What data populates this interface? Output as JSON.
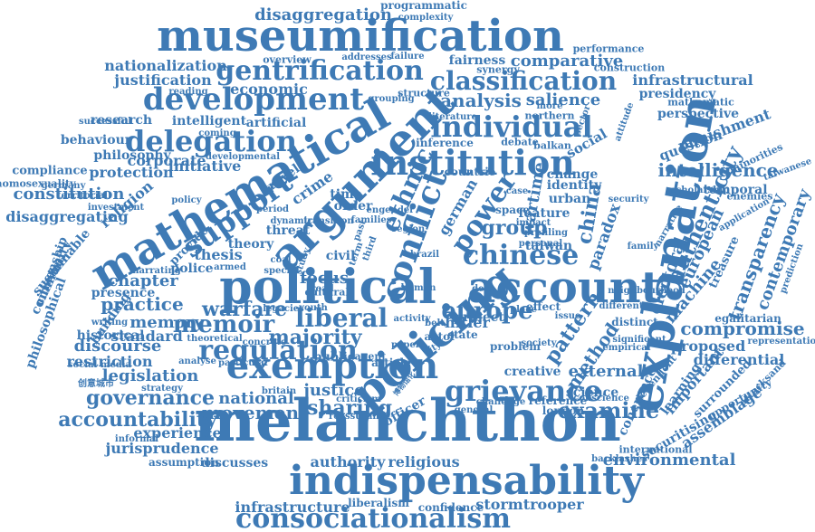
{
  "colors": {
    "word": "#3e7ab5",
    "background": "#ffffff"
  },
  "words": [
    {
      "text": "museumification"
    },
    {
      "text": "melanchthon"
    },
    {
      "text": "indispensability"
    },
    {
      "text": "political"
    },
    {
      "text": "account"
    },
    {
      "text": "mathematical"
    },
    {
      "text": "argument"
    },
    {
      "text": "explanation"
    },
    {
      "text": "policing"
    },
    {
      "text": "exemption"
    },
    {
      "text": "consociationalism"
    },
    {
      "text": "institution"
    },
    {
      "text": "conflict"
    },
    {
      "text": "development"
    },
    {
      "text": "gentrification"
    },
    {
      "text": "classification"
    },
    {
      "text": "grievance"
    },
    {
      "text": "regulation"
    },
    {
      "text": "delegation"
    },
    {
      "text": "individual"
    },
    {
      "text": "chinese"
    },
    {
      "text": "support"
    },
    {
      "text": "ethnic"
    },
    {
      "text": "power"
    },
    {
      "text": "liberal"
    },
    {
      "text": "memoir"
    },
    {
      "text": "authenticity"
    },
    {
      "text": "pattern"
    },
    {
      "text": "accountability"
    },
    {
      "text": "environmental"
    },
    {
      "text": "intelligence"
    },
    {
      "text": "transparency"
    },
    {
      "text": "compromise"
    },
    {
      "text": "disaggregation"
    },
    {
      "text": "nationalization"
    },
    {
      "text": "justification"
    },
    {
      "text": "comparative"
    },
    {
      "text": "infrastructural"
    },
    {
      "text": "economic"
    },
    {
      "text": "analysis"
    },
    {
      "text": "salience"
    },
    {
      "text": "fairness"
    },
    {
      "text": "programmatic"
    },
    {
      "text": "performance"
    },
    {
      "text": "construction"
    },
    {
      "text": "presidency"
    },
    {
      "text": "perspective"
    },
    {
      "text": "punishment"
    },
    {
      "text": "question"
    },
    {
      "text": "minorities"
    },
    {
      "text": "temporal"
    },
    {
      "text": "electoral"
    },
    {
      "text": "european"
    },
    {
      "text": "treasure"
    },
    {
      "text": "machine"
    },
    {
      "text": "contemporary"
    },
    {
      "text": "proposed"
    },
    {
      "text": "representation"
    },
    {
      "text": "differential"
    },
    {
      "text": "learning"
    },
    {
      "text": "important"
    },
    {
      "text": "assemblage"
    },
    {
      "text": "surrounded"
    },
    {
      "text": "attacksand"
    },
    {
      "text": "opportunity"
    },
    {
      "text": "securitising"
    },
    {
      "text": "international"
    },
    {
      "text": "backlashes"
    },
    {
      "text": "coherence"
    },
    {
      "text": "examine"
    },
    {
      "text": "external"
    },
    {
      "text": "science"
    },
    {
      "text": "method"
    },
    {
      "text": "creative"
    },
    {
      "text": "reference"
    },
    {
      "text": "conscience"
    },
    {
      "text": "london"
    },
    {
      "text": "general"
    },
    {
      "text": "challenge"
    },
    {
      "text": "sharing"
    },
    {
      "text": "justice"
    },
    {
      "text": "reassurance"
    },
    {
      "text": "authority"
    },
    {
      "text": "religious"
    },
    {
      "text": "liberalism"
    },
    {
      "text": "confidence"
    },
    {
      "text": "stormtrooper"
    },
    {
      "text": "infrastructure"
    },
    {
      "text": "discusses"
    },
    {
      "text": "assumption"
    },
    {
      "text": "jurisprudence"
    },
    {
      "text": "experience"
    },
    {
      "text": "informal"
    },
    {
      "text": "movement"
    },
    {
      "text": "national"
    },
    {
      "text": "governance"
    },
    {
      "text": "legislation"
    },
    {
      "text": "restriction"
    },
    {
      "text": "discourse"
    },
    {
      "text": "historical"
    },
    {
      "text": "standard"
    },
    {
      "text": "memory"
    },
    {
      "text": "practice"
    },
    {
      "text": "presence"
    },
    {
      "text": "chapter"
    },
    {
      "text": "building"
    },
    {
      "text": "police"
    },
    {
      "text": "warfare"
    },
    {
      "text": "sustainable"
    },
    {
      "text": "community"
    },
    {
      "text": "philosophical"
    },
    {
      "text": "citizenship"
    },
    {
      "text": "disaggregating"
    },
    {
      "text": "constitution"
    },
    {
      "text": "compliance"
    },
    {
      "text": "homosexuality"
    },
    {
      "text": "behaviour"
    },
    {
      "text": "philosophy"
    },
    {
      "text": "protection"
    },
    {
      "text": "corporate"
    },
    {
      "text": "initiative"
    },
    {
      "text": "religion"
    },
    {
      "text": "research"
    },
    {
      "text": "intelligent"
    },
    {
      "text": "artificial"
    },
    {
      "text": "reading"
    },
    {
      "text": "successful"
    },
    {
      "text": "developmental"
    },
    {
      "text": "majority"
    },
    {
      "text": "europe"
    },
    {
      "text": "group"
    },
    {
      "text": "china"
    },
    {
      "text": "german"
    },
    {
      "text": "crime"
    },
    {
      "text": "project"
    },
    {
      "text": "taiwan"
    },
    {
      "text": "urban"
    },
    {
      "text": "identity"
    },
    {
      "text": "change"
    },
    {
      "text": "feature"
    },
    {
      "text": "space"
    },
    {
      "text": "social"
    },
    {
      "text": "paradox"
    },
    {
      "text": "wartime"
    },
    {
      "text": "thesis"
    },
    {
      "text": "theory"
    },
    {
      "text": "threat"
    },
    {
      "text": "focus"
    },
    {
      "text": "civil"
    },
    {
      "text": "time"
    },
    {
      "text": "order"
    },
    {
      "text": "hitler"
    },
    {
      "text": "state"
    },
    {
      "text": "actor"
    },
    {
      "text": "effect"
    },
    {
      "text": "article"
    },
    {
      "text": "public"
    },
    {
      "text": "agent"
    },
    {
      "text": "armed"
    },
    {
      "text": "travel"
    },
    {
      "text": "provide"
    },
    {
      "text": "concrete"
    },
    {
      "text": "cultural"
    },
    {
      "text": "failure"
    },
    {
      "text": "structure"
    },
    {
      "text": "synergy"
    },
    {
      "text": "northern"
    },
    {
      "text": "inference"
    },
    {
      "text": "debate"
    },
    {
      "text": "balkan"
    },
    {
      "text": "countrie"
    },
    {
      "text": "brazil"
    },
    {
      "text": "case"
    },
    {
      "text": "policy"
    },
    {
      "text": "germany"
    },
    {
      "text": "territorial"
    },
    {
      "text": "investment"
    },
    {
      "text": "overview"
    },
    {
      "text": "addresses"
    },
    {
      "text": "complexity"
    },
    {
      "text": "mathematic"
    },
    {
      "text": "taiwanese"
    },
    {
      "text": "scholarship"
    },
    {
      "text": "enemies"
    },
    {
      "text": "application"
    },
    {
      "text": "dependent"
    },
    {
      "text": "significant"
    },
    {
      "text": "egalitarian"
    },
    {
      "text": "prediction"
    },
    {
      "text": "neighbourhood"
    },
    {
      "text": "distinct"
    },
    {
      "text": "different"
    },
    {
      "text": "strategy"
    },
    {
      "text": "analyse"
    },
    {
      "text": "legacies"
    },
    {
      "text": "writing"
    },
    {
      "text": "narrating"
    },
    {
      "text": "personal"
    },
    {
      "text": "family"
    },
    {
      "text": "impact"
    },
    {
      "text": "youth"
    },
    {
      "text": "study"
    },
    {
      "text": "more"
    },
    {
      "text": "sector"
    },
    {
      "text": "grouping"
    },
    {
      "text": "literature"
    },
    {
      "text": "coming"
    },
    {
      "text": "families"
    },
    {
      "text": "engender"
    },
    {
      "text": "third"
    },
    {
      "text": "past"
    },
    {
      "text": "term"
    },
    {
      "text": "road"
    },
    {
      "text": "deal"
    },
    {
      "text": "belt"
    },
    {
      "text": "city"
    },
    {
      "text": "paper"
    },
    {
      "text": "place"
    },
    {
      "text": "society"
    },
    {
      "text": "issue"
    },
    {
      "text": "britain"
    },
    {
      "text": "criticism"
    },
    {
      "text": "activity"
    },
    {
      "text": "problem"
    },
    {
      "text": "officer"
    },
    {
      "text": "博物馆化"
    },
    {
      "text": "创意城市"
    },
    {
      "text": "social media"
    },
    {
      "text": "particular"
    },
    {
      "text": "theoretical"
    },
    {
      "text": "transition"
    },
    {
      "text": "dynamic"
    },
    {
      "text": "region"
    },
    {
      "text": "period"
    },
    {
      "text": "coal"
    },
    {
      "text": "special"
    },
    {
      "text": "human"
    },
    {
      "text": "security"
    },
    {
      "text": "attitude"
    },
    {
      "text": "empirical"
    },
    {
      "text": "profiling"
    },
    {
      "text": "narrative"
    },
    {
      "text": "parties"
    },
    {
      "text": "strategies"
    }
  ]
}
